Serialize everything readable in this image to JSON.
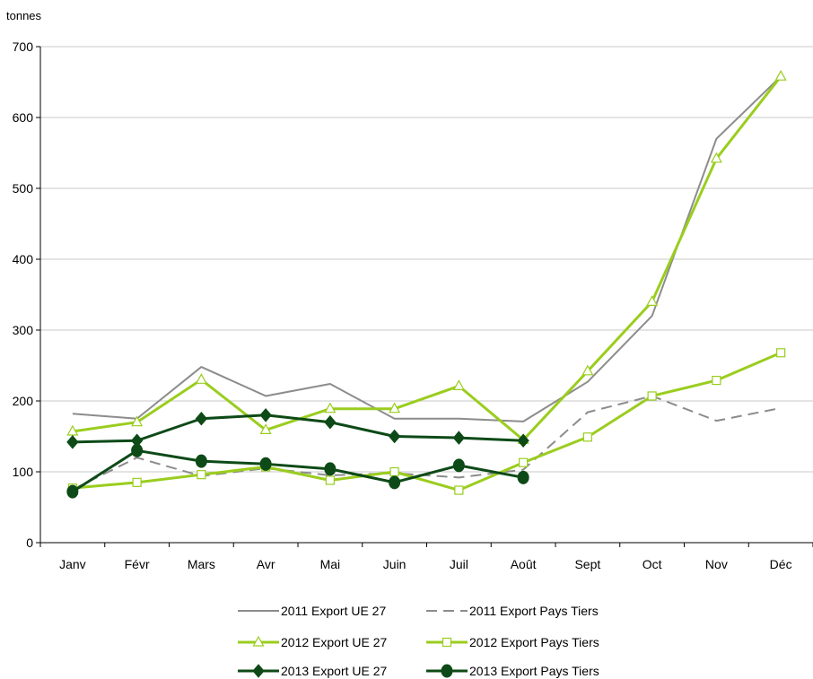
{
  "chart_data": {
    "type": "line",
    "title": "",
    "xlabel": "",
    "ylabel": "tonnes",
    "ylim": [
      0,
      700
    ],
    "yticks": [
      "0",
      "100",
      "200",
      "300",
      "400",
      "500",
      "600",
      "700"
    ],
    "grid": true,
    "legend_position": "bottom",
    "categories": [
      "Janv",
      "Févr",
      "Mars",
      "Avr",
      "Mai",
      "Juin",
      "Juil",
      "Août",
      "Sept",
      "Oct",
      "Nov",
      "Déc"
    ],
    "series": [
      {
        "name": "2011 Export UE 27",
        "color": "#8c8c8c",
        "dash": "solid",
        "marker": "none",
        "values": [
          182,
          175,
          248,
          207,
          224,
          175,
          175,
          171,
          227,
          320,
          570,
          658
        ]
      },
      {
        "name": "2011 Export Pays Tiers",
        "color": "#8c8c8c",
        "dash": "dashed",
        "marker": "none",
        "values": [
          75,
          120,
          94,
          105,
          95,
          98,
          92,
          103,
          184,
          207,
          172,
          190
        ]
      },
      {
        "name": "2012 Export UE 27",
        "color": "#9acd1e",
        "dash": "solid",
        "marker": "triangle",
        "values": [
          157,
          170,
          230,
          159,
          189,
          189,
          221,
          145,
          242,
          340,
          542,
          658
        ]
      },
      {
        "name": "2012 Export Pays Tiers",
        "color": "#9acd1e",
        "dash": "solid",
        "marker": "square",
        "values": [
          77,
          85,
          96,
          107,
          88,
          100,
          74,
          113,
          149,
          207,
          229,
          268
        ]
      },
      {
        "name": "2013 Export UE 27",
        "color": "#0d4a17",
        "dash": "solid",
        "marker": "diamond",
        "values": [
          142,
          144,
          175,
          180,
          170,
          150,
          148,
          144,
          null,
          null,
          null,
          null
        ]
      },
      {
        "name": "2013 Export Pays Tiers",
        "color": "#0d4a17",
        "dash": "solid",
        "marker": "circle",
        "values": [
          72,
          130,
          115,
          111,
          104,
          85,
          109,
          92,
          null,
          null,
          null,
          null
        ]
      }
    ]
  }
}
